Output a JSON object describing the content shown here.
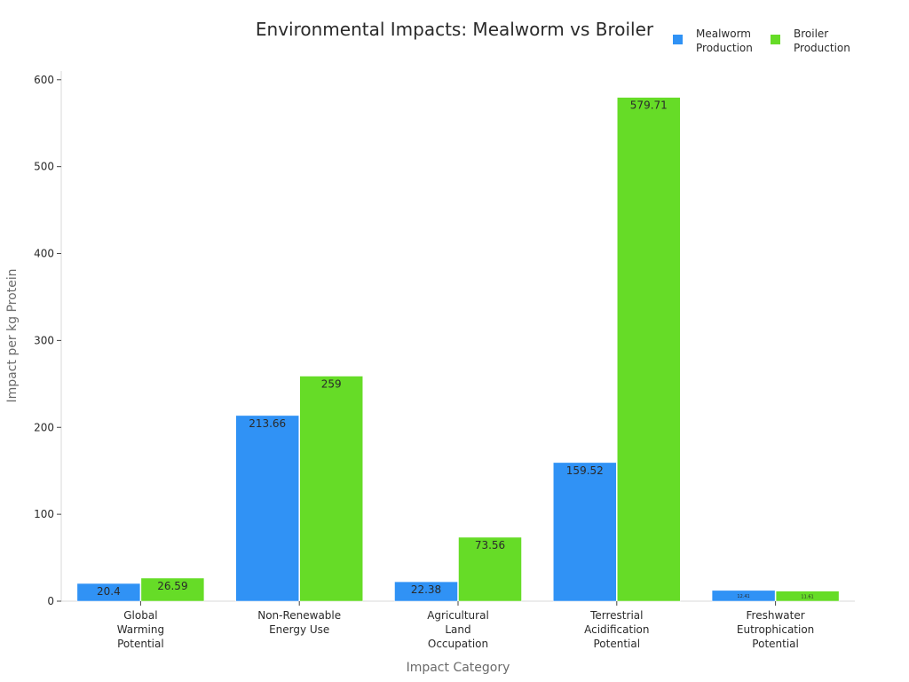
{
  "chart_data": {
    "type": "bar",
    "title": "Environmental Impacts: Mealworm vs Broiler",
    "xlabel": "Impact Category",
    "ylabel": "Impact per kg Protein",
    "categories": [
      "Global Warming Potential",
      "Non-Renewable Energy Use",
      "Agricultural Land Occupation",
      "Terrestrial Acidification Potential",
      "Freshwater Eutrophication Potential"
    ],
    "category_lines": [
      [
        "Global",
        "Warming",
        "Potential"
      ],
      [
        "Non-Renewable",
        "Energy Use"
      ],
      [
        "Agricultural",
        "Land",
        "Occupation"
      ],
      [
        "Terrestrial",
        "Acidification",
        "Potential"
      ],
      [
        "Freshwater",
        "Eutrophication",
        "Potential"
      ]
    ],
    "series": [
      {
        "name": "Mealworm Production",
        "legend_lines": [
          "Mealworm",
          "Production"
        ],
        "color": "#3092f5",
        "values": [
          20.4,
          213.66,
          22.38,
          159.52,
          12.41
        ],
        "labels": [
          "20.4",
          "213.66",
          "22.38",
          "159.52",
          "12.41"
        ]
      },
      {
        "name": "Broiler Production",
        "legend_lines": [
          "Broiler",
          "Production"
        ],
        "color": "#66dc27",
        "values": [
          26.59,
          259,
          73.56,
          579.71,
          11.61
        ],
        "labels": [
          "26.59",
          "259",
          "73.56",
          "579.71",
          "11.61"
        ]
      }
    ],
    "ylim": [
      0,
      610
    ],
    "yticks": [
      0,
      100,
      200,
      300,
      400,
      500,
      600
    ],
    "grid": false,
    "legend_position": "top-right"
  }
}
